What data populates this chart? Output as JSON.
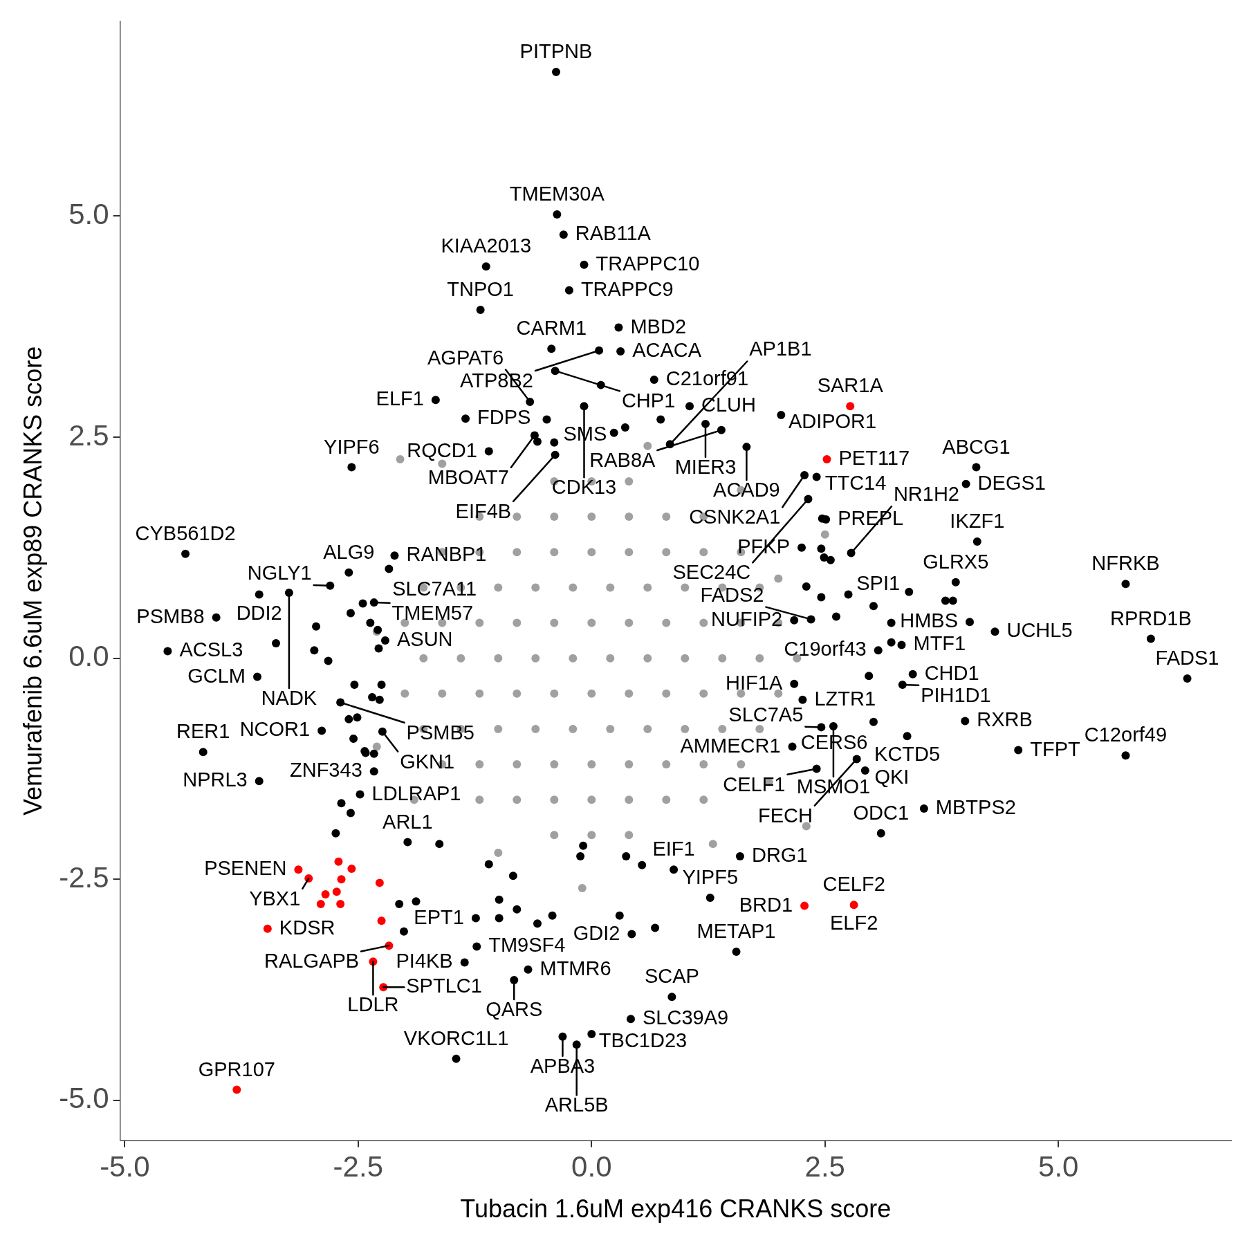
{
  "chart_data": {
    "type": "scatter",
    "xlabel": "Tubacin 1.6uM exp416 CRANKS score",
    "ylabel": "Vemurafenib 6.6uM exp89 CRANKS score",
    "marker": "circle",
    "xlim": [
      -5.05,
      6.85
    ],
    "ylim": [
      -5.45,
      7.2
    ],
    "xticks": [
      {
        "value": -5,
        "label": "-5.0"
      },
      {
        "value": -2.5,
        "label": "-2.5"
      },
      {
        "value": 0,
        "label": "0.0"
      },
      {
        "value": 2.5,
        "label": "2.5"
      },
      {
        "value": 5,
        "label": "5.0"
      }
    ],
    "yticks": [
      {
        "value": -5,
        "label": "-5.0"
      },
      {
        "value": -2.5,
        "label": "-2.5"
      },
      {
        "value": 0,
        "label": "0.0"
      },
      {
        "value": 2.5,
        "label": "2.5"
      },
      {
        "value": 5,
        "label": "5.0"
      }
    ],
    "series": [
      {
        "color": "#a0a0a0",
        "x": [
          -0.4,
          0,
          0.4,
          -1.2,
          -0.8,
          -0.4,
          0,
          0.4,
          0.8,
          1.2,
          -1.6,
          -1.2,
          -0.8,
          -0.4,
          0,
          0.4,
          0.8,
          1.2,
          1.6,
          -1.8,
          -1.4,
          -1.0,
          -0.6,
          -0.2,
          0.2,
          0.6,
          1.0,
          1.4,
          1.8,
          -2.0,
          -1.6,
          -1.2,
          -0.8,
          -0.4,
          0,
          0.4,
          0.8,
          1.2,
          1.6,
          2.0,
          -1.8,
          -1.4,
          -1.0,
          -0.6,
          -0.2,
          0.2,
          0.6,
          1.0,
          1.4,
          1.8,
          2.2,
          -2.0,
          -1.6,
          -1.2,
          -0.8,
          -0.4,
          0,
          0.4,
          0.8,
          1.2,
          1.6,
          2.0,
          -1.8,
          -1.4,
          -1.0,
          -0.6,
          -0.2,
          0.2,
          0.6,
          1.0,
          1.4,
          1.8,
          -1.6,
          -1.2,
          -0.8,
          -0.4,
          0,
          0.4,
          0.8,
          1.2,
          1.6,
          -1.2,
          -0.8,
          -0.4,
          0,
          0.4,
          0.8,
          1.2,
          -0.4,
          0,
          0.4,
          -2.05,
          -1.6,
          0.6,
          1.6,
          2.5,
          2.3,
          1.3,
          -1.0,
          -2.3,
          -2.3,
          -0.1,
          2.0,
          -1.9,
          1.9
        ],
        "values": [
          2.0,
          2.0,
          2.0,
          1.6,
          1.6,
          1.6,
          1.6,
          1.6,
          1.6,
          1.6,
          1.2,
          1.2,
          1.2,
          1.2,
          1.2,
          1.2,
          1.2,
          1.2,
          1.2,
          0.8,
          0.8,
          0.8,
          0.8,
          0.8,
          0.8,
          0.8,
          0.8,
          0.8,
          0.8,
          0.4,
          0.4,
          0.4,
          0.4,
          0.4,
          0.4,
          0.4,
          0.4,
          0.4,
          0.4,
          0.4,
          0.0,
          0.0,
          0.0,
          0.0,
          0.0,
          0.0,
          0.0,
          0.0,
          0.0,
          0.0,
          0.0,
          -0.4,
          -0.4,
          -0.4,
          -0.4,
          -0.4,
          -0.4,
          -0.4,
          -0.4,
          -0.4,
          -0.4,
          -0.4,
          -0.8,
          -0.8,
          -0.8,
          -0.8,
          -0.8,
          -0.8,
          -0.8,
          -0.8,
          -0.8,
          -0.8,
          -1.2,
          -1.2,
          -1.2,
          -1.2,
          -1.2,
          -1.2,
          -1.2,
          -1.2,
          -1.2,
          -1.6,
          -1.6,
          -1.6,
          -1.6,
          -1.6,
          -1.6,
          -1.6,
          -2.0,
          -2.0,
          -2.0,
          2.25,
          2.2,
          2.4,
          1.9,
          1.4,
          -1.9,
          -2.1,
          -2.2,
          -1.0,
          0.3,
          -2.6,
          0.9,
          -1.6,
          -1.4
        ]
      },
      {
        "color": "#000000",
        "x": [
          -0.38,
          -0.37,
          -0.3,
          -0.08,
          -1.13,
          -1.19,
          -0.24,
          0.29,
          0.31,
          -0.43,
          0.08,
          -0.39,
          0.1,
          0.67,
          1.05,
          0.74,
          -1.67,
          -0.66,
          -1.35,
          -0.48,
          -0.08,
          0.24,
          0.36,
          1.22,
          1.39,
          2.03,
          1.66,
          -1.1,
          -0.61,
          -0.58,
          -0.4,
          -0.39,
          -2.57,
          0.84,
          4.12,
          4.01,
          4.13,
          2.28,
          2.41,
          2.32,
          2.47,
          2.51,
          2.25,
          2.46,
          2.78,
          2.49,
          2.56,
          3.9,
          5.72,
          3.79,
          3.87,
          3.4,
          2.75,
          2.46,
          2.3,
          3.02,
          2.62,
          2.35,
          2.17,
          3.21,
          4.05,
          4.32,
          5.99,
          3.21,
          3.32,
          3.07,
          6.38,
          3.44,
          2.97,
          3.33,
          2.17,
          2.26,
          3.02,
          4.0,
          3.38,
          2.46,
          2.59,
          4.57,
          5.72,
          2.15,
          2.84,
          2.93,
          2.41,
          3.56,
          3.1,
          1.59,
          1.55,
          0.86,
          0.42,
          0.0,
          -0.16,
          -0.31,
          -1.45,
          -0.83,
          -0.68,
          0.68,
          0.43,
          0.3,
          1.27,
          0.88,
          0.54,
          0.37,
          -0.09,
          -0.12,
          -1.24,
          -0.99,
          -0.8,
          -0.58,
          -0.42,
          -0.99,
          -0.84,
          -1.1,
          -1.36,
          -1.23,
          -2.06,
          -1.88,
          -2.01,
          -1.97,
          -1.63,
          -2.74,
          -2.68,
          -2.58,
          -2.48,
          -3.56,
          -4.16,
          -2.89,
          -2.55,
          -2.43,
          -2.33,
          -2.42,
          -2.24,
          -2.6,
          -2.51,
          -2.35,
          -2.54,
          -2.69,
          -3.58,
          -4.54,
          -4.02,
          -4.35,
          -3.56,
          -3.24,
          -2.8,
          -2.6,
          -3.38,
          -2.97,
          -2.82,
          -2.95,
          -2.58,
          -2.45,
          -2.33,
          -2.37,
          -2.28,
          -2.21,
          -2.29,
          -2.17,
          -2.11,
          -2.27,
          -2.25,
          -2.33
        ],
        "values": [
          6.63,
          5.02,
          4.79,
          4.45,
          4.43,
          3.94,
          4.16,
          3.74,
          3.47,
          3.5,
          3.48,
          3.25,
          3.09,
          3.15,
          2.85,
          2.7,
          2.92,
          2.9,
          2.71,
          2.7,
          2.85,
          2.55,
          2.61,
          2.65,
          2.58,
          2.75,
          2.39,
          2.34,
          2.52,
          2.45,
          2.44,
          2.3,
          2.16,
          2.42,
          2.16,
          1.97,
          1.32,
          2.07,
          2.05,
          1.8,
          1.58,
          1.57,
          1.25,
          1.24,
          1.19,
          1.14,
          1.11,
          0.86,
          0.84,
          0.65,
          0.65,
          0.75,
          0.72,
          0.69,
          0.81,
          0.59,
          0.47,
          0.44,
          0.43,
          0.4,
          0.41,
          0.3,
          0.22,
          0.18,
          0.15,
          0.09,
          -0.23,
          -0.18,
          -0.2,
          -0.3,
          -0.29,
          -0.47,
          -0.72,
          -0.71,
          -0.88,
          -0.78,
          -0.77,
          -1.04,
          -1.1,
          -1.0,
          -1.14,
          -1.27,
          -1.25,
          -1.7,
          -1.98,
          -2.24,
          -3.32,
          -3.83,
          -4.08,
          -4.25,
          -4.37,
          -4.28,
          -4.53,
          -3.64,
          -3.52,
          -3.05,
          -3.12,
          -2.91,
          -2.71,
          -2.39,
          -2.34,
          -2.24,
          -2.12,
          -2.24,
          -2.94,
          -2.94,
          -2.84,
          -3.0,
          -2.91,
          -2.73,
          -2.46,
          -2.33,
          -3.44,
          -3.26,
          -2.78,
          -2.75,
          -3.09,
          -2.08,
          -2.1,
          -1.98,
          -1.64,
          -1.75,
          -1.54,
          -1.39,
          -1.06,
          -0.82,
          -0.91,
          -1.05,
          -1.28,
          -1.07,
          -0.83,
          -0.69,
          -0.67,
          -0.44,
          -0.3,
          -0.5,
          -0.21,
          0.08,
          0.46,
          1.18,
          0.72,
          0.74,
          0.82,
          0.97,
          0.17,
          0.09,
          -0.03,
          0.36,
          0.51,
          0.62,
          0.63,
          0.4,
          0.11,
          0.2,
          0.32,
          1.01,
          1.16,
          -0.47,
          -0.3,
          -1.08
        ]
      },
      {
        "color": "#ff0000",
        "x": [
          2.77,
          2.52,
          2.28,
          2.81,
          -3.14,
          -3.03,
          -2.71,
          -2.57,
          -2.68,
          -2.85,
          -2.9,
          -2.73,
          -2.69,
          -2.27,
          -2.25,
          -2.17,
          -3.47,
          -2.34,
          -2.23,
          -3.8
        ],
        "values": [
          2.85,
          2.25,
          -2.8,
          -2.79,
          -2.39,
          -2.49,
          -2.3,
          -2.38,
          -2.5,
          -2.67,
          -2.78,
          -2.64,
          -2.78,
          -2.54,
          -2.97,
          -3.25,
          -3.06,
          -3.43,
          -3.72,
          -4.88
        ]
      }
    ],
    "annotations": [
      {
        "text": "PITPNB",
        "x": -0.38,
        "y": 6.63
      },
      {
        "text": "TMEM30A",
        "x": -0.37,
        "y": 5.02
      },
      {
        "text": "RAB11A",
        "x": -0.3,
        "y": 4.79
      },
      {
        "text": "KIAA2013",
        "x": -1.13,
        "y": 4.43
      },
      {
        "text": "TRAPPC10",
        "x": -0.08,
        "y": 4.45
      },
      {
        "text": "ACACA",
        "x": 0.31,
        "y": 3.47
      },
      {
        "text": "TRAPPC9",
        "x": -0.24,
        "y": 4.16
      },
      {
        "text": "MBD2",
        "x": 0.29,
        "y": 3.74
      },
      {
        "text": "TNPO1",
        "x": -1.19,
        "y": 3.94
      },
      {
        "text": "C21orf91",
        "x": 0.67,
        "y": 3.15
      },
      {
        "text": "CARM1",
        "x": -0.43,
        "y": 3.5
      },
      {
        "text": "ATP8B2",
        "x": 0.08,
        "y": 3.48
      },
      {
        "text": "CLUH",
        "x": 1.05,
        "y": 2.85
      },
      {
        "text": "ADIPOR1",
        "x": 2.03,
        "y": 2.75
      },
      {
        "text": "CHP1",
        "x": -0.39,
        "y": 3.25
      },
      {
        "text": "AGPAT6",
        "x": -0.66,
        "y": 2.9
      },
      {
        "text": "ELF1",
        "x": -1.67,
        "y": 2.92
      },
      {
        "text": "MIER3",
        "x": 1.22,
        "y": 2.65
      },
      {
        "text": "CDK13",
        "x": -0.08,
        "y": 2.85
      },
      {
        "text": "SAR1A",
        "x": 2.77,
        "y": 2.85
      },
      {
        "text": "FDPS",
        "x": -1.35,
        "y": 2.71
      },
      {
        "text": "RQCD1",
        "x": -1.1,
        "y": 2.34
      },
      {
        "text": "ACAD9",
        "x": 1.66,
        "y": 2.39
      },
      {
        "text": "PET117",
        "x": 2.52,
        "y": 2.25
      },
      {
        "text": "ABCG1",
        "x": 4.12,
        "y": 2.16
      },
      {
        "text": "YIPF6",
        "x": -2.57,
        "y": 2.16
      },
      {
        "text": "MBOAT7",
        "x": -0.61,
        "y": 2.52
      },
      {
        "text": "EIF4B",
        "x": -0.39,
        "y": 2.3
      },
      {
        "text": "RAB8A",
        "x": 1.39,
        "y": 2.58
      },
      {
        "text": "TTC14",
        "x": 2.41,
        "y": 2.05
      },
      {
        "text": "SMS",
        "x": -0.4,
        "y": 2.44
      },
      {
        "text": "CSNK2A1",
        "x": 2.28,
        "y": 2.07
      },
      {
        "text": "DEGS1",
        "x": 4.01,
        "y": 1.97
      },
      {
        "text": "IKZF1",
        "x": 4.13,
        "y": 1.32
      },
      {
        "text": "CYB561D2",
        "x": -4.35,
        "y": 1.18
      },
      {
        "text": "ALG9",
        "x": -2.6,
        "y": 0.97
      },
      {
        "text": "RANBP1",
        "x": -2.11,
        "y": 1.16
      },
      {
        "text": "PREPL",
        "x": 2.51,
        "y": 1.57
      },
      {
        "text": "NGLY1",
        "x": -2.8,
        "y": 0.82
      },
      {
        "text": "SLC7A11",
        "x": -2.17,
        "y": 1.01
      },
      {
        "text": "AP1B1",
        "x": 0.84,
        "y": 2.42
      },
      {
        "text": "PFKP",
        "x": 2.25,
        "y": 1.25
      },
      {
        "text": "GLRX5",
        "x": 3.9,
        "y": 0.86
      },
      {
        "text": "NFRKB",
        "x": 5.72,
        "y": 0.84
      },
      {
        "text": "DDI2",
        "x": -3.56,
        "y": 0.72
      },
      {
        "text": "NR1H2",
        "x": 2.78,
        "y": 1.19
      },
      {
        "text": "SEC24C",
        "x": 2.32,
        "y": 1.8
      },
      {
        "text": "TMEM57",
        "x": -2.33,
        "y": 0.63
      },
      {
        "text": "PSMB8",
        "x": -4.02,
        "y": 0.46
      },
      {
        "text": "NADK",
        "x": -3.24,
        "y": 0.74
      },
      {
        "text": "HMBS",
        "x": 4.05,
        "y": 0.41
      },
      {
        "text": "RPRD1B",
        "x": 5.99,
        "y": 0.22
      },
      {
        "text": "SPI1",
        "x": 3.4,
        "y": 0.75
      },
      {
        "text": "NUFIP2",
        "x": 2.17,
        "y": 0.43
      },
      {
        "text": "ASUN",
        "x": -2.21,
        "y": 0.2
      },
      {
        "text": "C19orf43",
        "x": 3.07,
        "y": 0.09
      },
      {
        "text": "UCHL5",
        "x": 4.32,
        "y": 0.3
      },
      {
        "text": "GCLM",
        "x": -3.58,
        "y": -0.21
      },
      {
        "text": "FADS2",
        "x": 2.35,
        "y": 0.44
      },
      {
        "text": "MTF1",
        "x": 3.32,
        "y": 0.15
      },
      {
        "text": "HIF1A",
        "x": 2.17,
        "y": -0.29
      },
      {
        "text": "ACSL3",
        "x": -4.54,
        "y": 0.08
      },
      {
        "text": "PSMB5",
        "x": -2.69,
        "y": -0.5
      },
      {
        "text": "CHD1",
        "x": 3.44,
        "y": -0.18
      },
      {
        "text": "LZTR1",
        "x": 2.26,
        "y": -0.47
      },
      {
        "text": "PIH1D1",
        "x": 3.33,
        "y": -0.3
      },
      {
        "text": "FADS1",
        "x": 6.38,
        "y": -0.23
      },
      {
        "text": "AMMECR1",
        "x": 2.15,
        "y": -1.0
      },
      {
        "text": "GKN1",
        "x": -2.24,
        "y": -0.83
      },
      {
        "text": "RER1",
        "x": -4.16,
        "y": -1.06
      },
      {
        "text": "CERS6",
        "x": 3.02,
        "y": -0.72
      },
      {
        "text": "KCTD5",
        "x": 3.38,
        "y": -0.88
      },
      {
        "text": "RXRB",
        "x": 4.0,
        "y": -0.71
      },
      {
        "text": "SLC7A5",
        "x": 2.46,
        "y": -0.78
      },
      {
        "text": "C12orf49",
        "x": 5.72,
        "y": -1.1
      },
      {
        "text": "ZNF343",
        "x": -2.33,
        "y": -1.28
      },
      {
        "text": "NCOR1",
        "x": -2.89,
        "y": -0.82
      },
      {
        "text": "MSMO1",
        "x": 2.59,
        "y": -0.77
      },
      {
        "text": "CELF1",
        "x": 2.41,
        "y": -1.25
      },
      {
        "text": "QKI",
        "x": 2.93,
        "y": -1.27
      },
      {
        "text": "ODC1",
        "x": 3.1,
        "y": -1.98
      },
      {
        "text": "TFPT",
        "x": 4.57,
        "y": -1.04
      },
      {
        "text": "LDLRAP1",
        "x": -2.48,
        "y": -1.54
      },
      {
        "text": "NPRL3",
        "x": -3.56,
        "y": -1.39
      },
      {
        "text": "MBTPS2",
        "x": 3.56,
        "y": -1.7
      },
      {
        "text": "ARL1",
        "x": -1.97,
        "y": -2.08
      },
      {
        "text": "FECH",
        "x": 2.84,
        "y": -1.14
      },
      {
        "text": "PSENEN",
        "x": -3.14,
        "y": -2.39
      },
      {
        "text": "DRG1",
        "x": 1.59,
        "y": -2.24
      },
      {
        "text": "CELF2",
        "x": 2.81,
        "y": -2.79
      },
      {
        "text": "EIF1",
        "x": 0.88,
        "y": -2.39
      },
      {
        "text": "YBX1",
        "x": -3.03,
        "y": -2.49
      },
      {
        "text": "ELF2",
        "x": 2.81,
        "y": -2.79
      },
      {
        "text": "EPT1",
        "x": -1.24,
        "y": -2.94
      },
      {
        "text": "YIPF5",
        "x": 1.27,
        "y": -2.71
      },
      {
        "text": "BRD1",
        "x": 2.28,
        "y": -2.8
      },
      {
        "text": "KDSR",
        "x": -3.47,
        "y": -3.06
      },
      {
        "text": "PI4KB",
        "x": -1.36,
        "y": -3.44
      },
      {
        "text": "GDI2",
        "x": 0.43,
        "y": -3.12
      },
      {
        "text": "RALGAPB",
        "x": -2.17,
        "y": -3.25
      },
      {
        "text": "METAP1",
        "x": 1.55,
        "y": -3.32
      },
      {
        "text": "LDLR",
        "x": -2.34,
        "y": -3.43
      },
      {
        "text": "TM9SF4",
        "x": -1.23,
        "y": -3.26
      },
      {
        "text": "MTMR6",
        "x": -0.68,
        "y": -3.52
      },
      {
        "text": "SCAP",
        "x": 0.86,
        "y": -3.83
      },
      {
        "text": "SPTLC1",
        "x": -2.23,
        "y": -3.72
      },
      {
        "text": "SLC39A9",
        "x": 0.42,
        "y": -4.08
      },
      {
        "text": "QARS",
        "x": -0.83,
        "y": -3.64
      },
      {
        "text": "GPR107",
        "x": -3.8,
        "y": -4.88
      },
      {
        "text": "TBC1D23",
        "x": 0.0,
        "y": -4.25
      },
      {
        "text": "VKORC1L1",
        "x": -1.45,
        "y": -4.53
      },
      {
        "text": "APBA3",
        "x": -0.31,
        "y": -4.28
      },
      {
        "text": "ARL5B",
        "x": -0.16,
        "y": -4.37
      }
    ]
  }
}
